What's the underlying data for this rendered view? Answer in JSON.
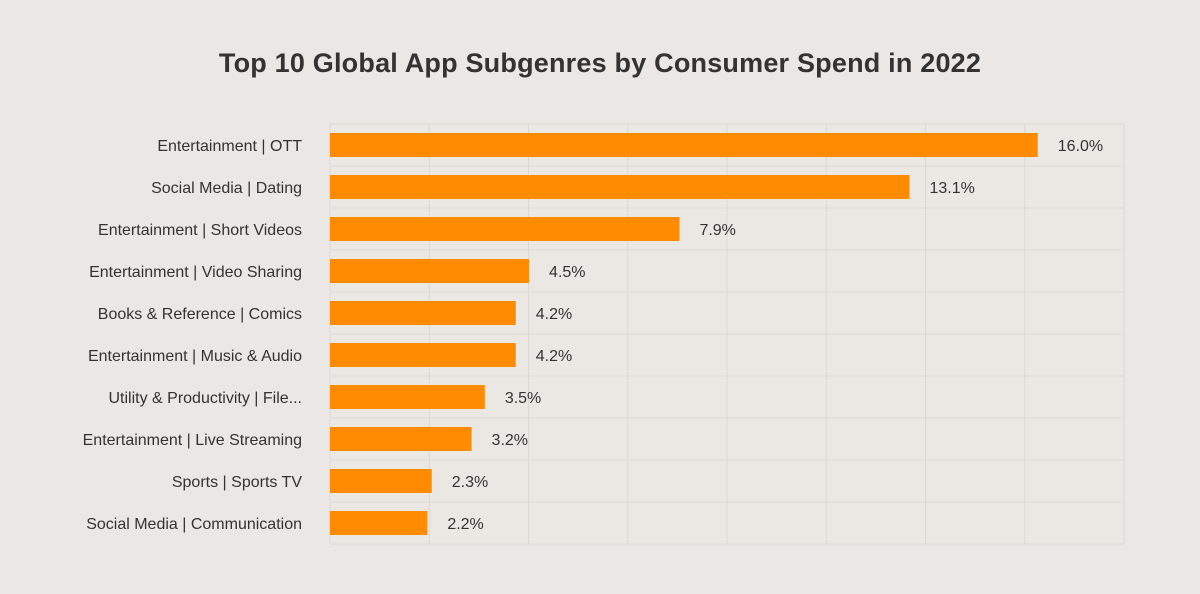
{
  "chart_data": {
    "type": "bar",
    "orientation": "horizontal",
    "title": "Top 10 Global App Subgenres by Consumer Spend in 2022",
    "xlabel": "",
    "ylabel": "",
    "categories": [
      "Entertainment | OTT",
      "Social Media | Dating",
      "Entertainment | Short Videos",
      "Entertainment | Video Sharing",
      "Books & Reference | Comics",
      "Entertainment | Music & Audio",
      "Utility & Productivity | File...",
      "Entertainment | Live Streaming",
      "Sports | Sports TV",
      "Social Media | Communication"
    ],
    "values": [
      16.0,
      13.1,
      7.9,
      4.5,
      4.2,
      4.2,
      3.5,
      3.2,
      2.3,
      2.2
    ],
    "value_labels": [
      "16.0%",
      "13.1%",
      "7.9%",
      "4.5%",
      "4.2%",
      "4.2%",
      "3.5%",
      "3.2%",
      "2.3%",
      "2.2%"
    ],
    "xlim": [
      0,
      17.95
    ],
    "grid": true,
    "legend": "none",
    "bar_color": "#ff8c00",
    "grid_color": "#dcd8d4",
    "plot_background": "#ebe7e3"
  }
}
